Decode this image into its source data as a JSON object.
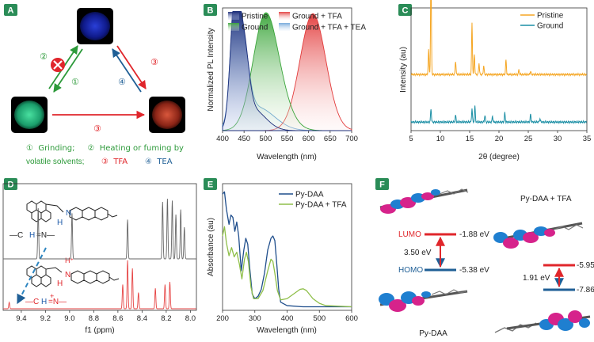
{
  "panels": {
    "A": {
      "letter": "A",
      "labels": {
        "step2": "②",
        "step1": "①",
        "step4": "④",
        "step3_right": "③",
        "step3_bottom": "③"
      },
      "legend": {
        "line1": "①  Grinding;     ②  Heating or fuming by",
        "line2a": "volatile solvents;",
        "line2b": "③  TFA",
        "line2c": "④  TEA"
      },
      "colors": {
        "green": "#2d9a3a",
        "red": "#e0262b",
        "blue": "#1f5f96"
      }
    },
    "B": {
      "letter": "B",
      "legend": [
        "Pristine",
        "Ground",
        "Ground + TFA",
        "Ground + TFA + TEA"
      ],
      "xlabel": "Wavelength (nm)",
      "ylabel": "Normalized PL Intensity",
      "xticks": [
        "400",
        "450",
        "500",
        "550",
        "600",
        "650",
        "700"
      ]
    },
    "C": {
      "letter": "C",
      "legend": [
        "Pristine",
        "Ground"
      ],
      "xlabel": "2θ (degree)",
      "ylabel": "Intensity (au)",
      "xticks": [
        "5",
        "10",
        "15",
        "20",
        "25",
        "30",
        "35"
      ]
    },
    "D": {
      "letter": "D",
      "struct1": {
        "H": "H",
        "N": "N"
      },
      "struct2": {
        "Hplus": "H⁺",
        "N": "N",
        "H": "H"
      },
      "formula1": {
        "a": "—C",
        "b": "H",
        "c": "=N—"
      },
      "formula2": {
        "a": "—C",
        "b": "H",
        "c": "=N—",
        "plus": "+"
      },
      "xlabel": "f1 (ppm)",
      "xticks": [
        "9.4",
        "9.2",
        "9.0",
        "8.8",
        "8.6",
        "8.4",
        "8.2",
        "8.0"
      ]
    },
    "E": {
      "letter": "E",
      "legend": [
        "Py-DAA",
        "Py-DAA + TFA"
      ],
      "xlabel": "Wavelength (nm)",
      "ylabel": "Absorbance (au)",
      "xticks": [
        "200",
        "300",
        "400",
        "500",
        "600"
      ]
    },
    "F": {
      "letter": "F",
      "title_right": "Py-DAA + TFA",
      "lumo_label": "LUMO",
      "homo_label": "HOMO",
      "lumo_left": "-1.88 eV",
      "homo_left": "-5.38 eV",
      "gap_left": "3.50 eV",
      "lumo_right": "-5.95 eV",
      "homo_right": "-7.86 eV",
      "gap_right": "1.91 eV",
      "caption_left": "Py-DAA"
    }
  },
  "chart_data": [
    {
      "panel": "B",
      "type": "area",
      "xlabel": "Wavelength (nm)",
      "ylabel": "Normalized PL Intensity",
      "xlim": [
        400,
        700
      ],
      "ylim": [
        0,
        1.05
      ],
      "series": [
        {
          "name": "Pristine",
          "color": "#1e2f7a",
          "peaks": [
            [
              428,
              1.0,
              10
            ],
            [
              448,
              0.65,
              12
            ],
            [
              470,
              0.18,
              30
            ]
          ]
        },
        {
          "name": "Ground",
          "color": "#3aa53a",
          "peaks": [
            [
              497,
              0.88,
              28
            ],
            [
              530,
              0.22,
              30
            ]
          ]
        },
        {
          "name": "Ground + TFA",
          "color": "#e23a3a",
          "peaks": [
            [
              610,
              1.0,
              30
            ]
          ]
        },
        {
          "name": "Ground + TFA + TEA",
          "color": "#4c8fd0",
          "peaks": [
            [
              428,
              0.95,
              10
            ],
            [
              448,
              0.6,
              13
            ],
            [
              480,
              0.2,
              40
            ]
          ]
        }
      ]
    },
    {
      "panel": "C",
      "type": "line",
      "xlabel": "2θ (degree)",
      "ylabel": "Intensity (au)",
      "xlim": [
        5,
        35
      ],
      "series": [
        {
          "name": "Pristine",
          "color": "#f5a623",
          "offset": 0.42,
          "peaks": [
            [
              8.4,
              0.95
            ],
            [
              8.0,
              0.22
            ],
            [
              12.6,
              0.12
            ],
            [
              15.4,
              0.45
            ],
            [
              15.8,
              0.18
            ],
            [
              16.6,
              0.1
            ],
            [
              17.4,
              0.08
            ],
            [
              21.2,
              0.13
            ],
            [
              23.4,
              0.04
            ],
            [
              25.4,
              0.03
            ]
          ]
        },
        {
          "name": "Ground",
          "color": "#1c8fa5",
          "offset": 0.0,
          "peaks": [
            [
              8.4,
              0.12
            ],
            [
              12.6,
              0.06
            ],
            [
              15.4,
              0.12
            ],
            [
              15.9,
              0.14
            ],
            [
              17.6,
              0.06
            ],
            [
              18.9,
              0.05
            ],
            [
              21.0,
              0.08
            ],
            [
              25.4,
              0.07
            ],
            [
              27.0,
              0.03
            ]
          ]
        }
      ]
    },
    {
      "panel": "D",
      "type": "line",
      "xlabel": "f1 (ppm)",
      "xlim": [
        9.55,
        7.95
      ],
      "series": [
        {
          "name": "Py-DAA",
          "color": "#666666",
          "peaks": [
            [
              9.26,
              0.8
            ],
            [
              8.98,
              0.72
            ],
            [
              8.52,
              0.62
            ],
            [
              8.23,
              0.9
            ],
            [
              8.19,
              0.95
            ],
            [
              8.15,
              0.92
            ],
            [
              8.12,
              0.7
            ],
            [
              8.08,
              0.78
            ],
            [
              8.05,
              0.5
            ]
          ]
        },
        {
          "name": "Py-DAA + TFA",
          "color": "#e64545",
          "peaks": [
            [
              9.5,
              0.12
            ],
            [
              8.56,
              0.45
            ],
            [
              8.52,
              0.9
            ],
            [
              8.48,
              0.75
            ],
            [
              8.43,
              0.3
            ],
            [
              8.29,
              0.38
            ],
            [
              8.21,
              0.45
            ],
            [
              8.17,
              0.5
            ]
          ]
        }
      ]
    },
    {
      "panel": "E",
      "type": "line",
      "xlabel": "Wavelength (nm)",
      "ylabel": "Absorbance (au)",
      "xlim": [
        200,
        600
      ],
      "ylim": [
        0,
        1.05
      ],
      "series": [
        {
          "name": "Py-DAA",
          "color": "#1f4e8c",
          "points": [
            [
              200,
              0.98
            ],
            [
              206,
              1.0
            ],
            [
              212,
              0.85
            ],
            [
              220,
              0.72
            ],
            [
              226,
              0.8
            ],
            [
              232,
              0.78
            ],
            [
              238,
              0.66
            ],
            [
              244,
              0.74
            ],
            [
              250,
              0.62
            ],
            [
              258,
              0.32
            ],
            [
              266,
              0.5
            ],
            [
              272,
              0.6
            ],
            [
              278,
              0.55
            ],
            [
              284,
              0.35
            ],
            [
              292,
              0.12
            ],
            [
              300,
              0.08
            ],
            [
              310,
              0.1
            ],
            [
              320,
              0.16
            ],
            [
              330,
              0.3
            ],
            [
              340,
              0.5
            ],
            [
              350,
              0.6
            ],
            [
              356,
              0.62
            ],
            [
              362,
              0.58
            ],
            [
              368,
              0.38
            ],
            [
              374,
              0.16
            ],
            [
              380,
              0.05
            ],
            [
              400,
              0.02
            ],
            [
              450,
              0.01
            ],
            [
              500,
              0.01
            ],
            [
              600,
              0.01
            ]
          ]
        },
        {
          "name": "Py-DAA + TFA",
          "color": "#8fbf4a",
          "points": [
            [
              200,
              0.62
            ],
            [
              206,
              0.7
            ],
            [
              212,
              0.56
            ],
            [
              220,
              0.45
            ],
            [
              228,
              0.52
            ],
            [
              236,
              0.44
            ],
            [
              244,
              0.48
            ],
            [
              252,
              0.38
            ],
            [
              260,
              0.25
            ],
            [
              268,
              0.42
            ],
            [
              274,
              0.48
            ],
            [
              280,
              0.4
            ],
            [
              288,
              0.18
            ],
            [
              296,
              0.08
            ],
            [
              310,
              0.08
            ],
            [
              325,
              0.15
            ],
            [
              340,
              0.32
            ],
            [
              350,
              0.42
            ],
            [
              356,
              0.4
            ],
            [
              362,
              0.3
            ],
            [
              370,
              0.15
            ],
            [
              380,
              0.07
            ],
            [
              400,
              0.08
            ],
            [
              420,
              0.12
            ],
            [
              440,
              0.16
            ],
            [
              450,
              0.165
            ],
            [
              460,
              0.15
            ],
            [
              480,
              0.08
            ],
            [
              500,
              0.04
            ],
            [
              520,
              0.02
            ],
            [
              600,
              0.01
            ]
          ]
        }
      ]
    }
  ]
}
